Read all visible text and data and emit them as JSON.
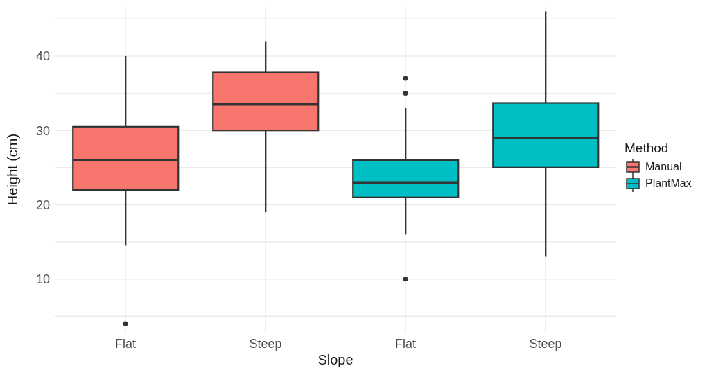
{
  "chart_data": {
    "type": "box",
    "xlabel": "Slope",
    "ylabel": "Height (cm)",
    "legend_title": "Method",
    "categories": [
      "Flat",
      "Steep",
      "Flat",
      "Steep"
    ],
    "series": [
      {
        "name": "Manual",
        "color": "#f8766d",
        "boxes": [
          {
            "low": 14.5,
            "q1": 22,
            "median": 26,
            "q3": 30.5,
            "high": 40,
            "outliers": [
              4
            ]
          },
          {
            "low": 19,
            "q1": 30,
            "median": 33.5,
            "q3": 37.8,
            "high": 42
          },
          null,
          null
        ]
      },
      {
        "name": "PlantMax",
        "color": "#00bfc4",
        "boxes": [
          null,
          null,
          {
            "low": 16,
            "q1": 21,
            "median": 23,
            "q3": 26,
            "high": 33,
            "outliers": [
              10,
              35,
              37
            ]
          },
          {
            "low": 13,
            "q1": 25,
            "median": 29,
            "q3": 33.7,
            "high": 46
          }
        ]
      }
    ],
    "ylim": [
      2.7,
      46.8
    ],
    "yticks": [
      {
        "value": 5,
        "label": null
      },
      10,
      {
        "value": 15,
        "label": null
      },
      20,
      {
        "value": 25,
        "label": null
      },
      30,
      {
        "value": 35,
        "label": null
      },
      40,
      {
        "value": 45,
        "label": null
      }
    ],
    "grid": true,
    "legend": "right"
  }
}
